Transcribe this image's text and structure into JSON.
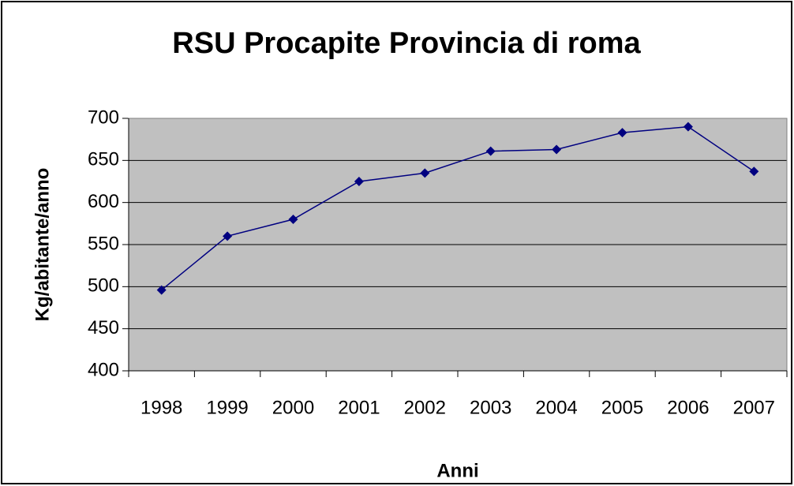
{
  "chart_data": {
    "type": "line",
    "title": "RSU Procapite Provincia di roma",
    "x_label": "Anni",
    "y_label": "Kg/abitante/anno",
    "categories": [
      "1998",
      "1999",
      "2000",
      "2001",
      "2002",
      "2003",
      "2004",
      "2005",
      "2006",
      "2007"
    ],
    "series": [
      {
        "color": "#000080",
        "values": [
          496,
          560,
          580,
          625,
          635,
          661,
          663,
          683,
          690,
          637
        ]
      }
    ],
    "ylim": [
      400,
      700
    ],
    "yticks": [
      400,
      450,
      500,
      550,
      600,
      650,
      700
    ],
    "grid": true,
    "plot_background": "#c0c0c0"
  }
}
